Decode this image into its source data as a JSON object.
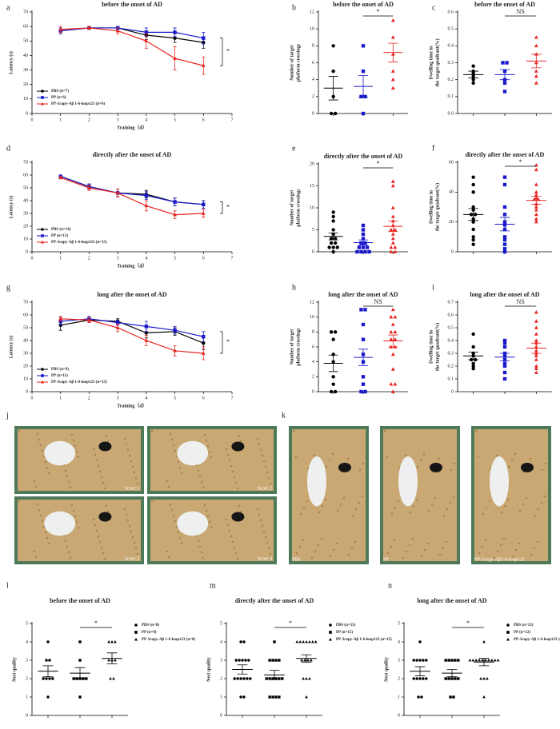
{
  "chart_data": [
    {
      "type": "line",
      "letter": "a",
      "title": "before the onset of AD",
      "xlabel": "Training（d）",
      "ylabel": "Latency (s)",
      "x": [
        1,
        2,
        3,
        4,
        5,
        6
      ],
      "xlim": [
        0,
        7
      ],
      "xticks": [
        0,
        1,
        2,
        3,
        4,
        5,
        6,
        7
      ],
      "ylim": [
        0,
        70
      ],
      "yticks": [
        0,
        10,
        20,
        30,
        40,
        50,
        60,
        70
      ],
      "legend": "lower left",
      "annotation": "*",
      "series": [
        {
          "name": "PBS  (n=7)",
          "color": "#000000",
          "marker": "circle",
          "values": [
            57,
            59,
            59,
            54,
            52,
            49
          ],
          "errors": [
            2,
            1,
            1,
            3,
            3,
            4
          ]
        },
        {
          "name": "PP  (n=6)",
          "color": "#1a1acc",
          "marker": "square",
          "values": [
            57,
            59,
            59,
            56,
            56,
            52
          ],
          "errors": [
            2,
            1,
            1,
            3,
            3,
            4
          ]
        },
        {
          "name": "PP-3copy-Aβ 1-6-loop123  (n=6)",
          "color": "#e8231f",
          "marker": "triangle",
          "values": [
            58,
            59,
            57,
            50,
            38,
            33
          ],
          "errors": [
            2,
            1,
            2,
            5,
            8,
            6
          ]
        }
      ]
    },
    {
      "type": "dot",
      "letter": "b",
      "title": "before the onset of AD",
      "ylabel": [
        "Number of target",
        "platform crossings"
      ],
      "ylim": [
        0,
        12
      ],
      "yticks": [
        0,
        2,
        4,
        6,
        8,
        10,
        12
      ],
      "annotation": "*",
      "series": [
        {
          "color": "#000000",
          "marker": "circle",
          "values": [
            8,
            5,
            2,
            0,
            0
          ],
          "mean": 3,
          "sem": 1.4
        },
        {
          "color": "#1a1acc",
          "marker": "square",
          "values": [
            8,
            5,
            2,
            2,
            0
          ],
          "mean": 3.2,
          "sem": 1.3
        },
        {
          "color": "#e8231f",
          "marker": "triangle",
          "values": [
            11,
            9,
            7,
            5,
            4,
            3
          ],
          "mean": 7.2,
          "sem": 1.1
        }
      ]
    },
    {
      "type": "dot",
      "letter": "c",
      "title": "before the onset of AD",
      "ylabel": [
        "Dwelling time in",
        "the target quadrant(%)"
      ],
      "ylim": [
        0,
        0.6
      ],
      "yticks": [
        {
          "value": 0,
          "label": "0.0"
        },
        0.1,
        0.2,
        0.3,
        0.4,
        0.5,
        0.6
      ],
      "annotation": "NS",
      "series": [
        {
          "color": "#000000",
          "marker": "circle",
          "values": [
            0.28,
            0.25,
            0.24,
            0.22,
            0.2,
            0.18
          ],
          "mean": 0.23,
          "sem": 0.02
        },
        {
          "color": "#1a1acc",
          "marker": "square",
          "values": [
            0.3,
            0.3,
            0.25,
            0.2,
            0.18,
            0.13
          ],
          "mean": 0.23,
          "sem": 0.03
        },
        {
          "color": "#e8231f",
          "marker": "triangle",
          "values": [
            0.45,
            0.4,
            0.35,
            0.3,
            0.25,
            0.22,
            0.18
          ],
          "mean": 0.31,
          "sem": 0.04
        }
      ]
    },
    {
      "type": "line",
      "letter": "d",
      "title": "directly after the onset of AD",
      "xlabel": "Training（d）",
      "ylabel": "Latency (s)",
      "x": [
        1,
        2,
        3,
        4,
        5,
        6
      ],
      "xlim": [
        0,
        7
      ],
      "xticks": [
        0,
        1,
        2,
        3,
        4,
        5,
        6,
        7
      ],
      "ylim": [
        0,
        70
      ],
      "yticks": [
        0,
        10,
        20,
        30,
        40,
        50,
        60,
        70
      ],
      "legend": "lower left",
      "annotation": "*",
      "series": [
        {
          "name": "PBS  (n=14)",
          "color": "#000000",
          "marker": "circle",
          "values": [
            59,
            51,
            46,
            45,
            39,
            37
          ],
          "errors": [
            1,
            2,
            3,
            3,
            3,
            3
          ]
        },
        {
          "name": "PP  (n=15)",
          "color": "#1a1acc",
          "marker": "square",
          "values": [
            59,
            51,
            46,
            44,
            39,
            37
          ],
          "errors": [
            1,
            2,
            3,
            3,
            3,
            3
          ]
        },
        {
          "name": "PP-3copy-Aβ 1-6-loop123  (n=15)",
          "color": "#e8231f",
          "marker": "triangle",
          "values": [
            58,
            50,
            46,
            36,
            29,
            30
          ],
          "errors": [
            1,
            2,
            3,
            4,
            3,
            3
          ]
        }
      ]
    },
    {
      "type": "dot",
      "letter": "e",
      "title": "directly after the onset of AD",
      "ylabel": [
        "Number of target",
        "platform crossings"
      ],
      "ylim": [
        0,
        20
      ],
      "yticks": [
        0,
        5,
        10,
        15,
        20
      ],
      "annotation": "*",
      "series": [
        {
          "color": "#000000",
          "marker": "circle",
          "values": [
            9,
            8,
            7,
            5,
            4,
            3,
            3,
            2,
            2,
            1,
            1,
            1,
            0
          ],
          "mean": 3.5,
          "sem": 0.8
        },
        {
          "color": "#1a1acc",
          "marker": "square",
          "values": [
            6,
            5,
            4,
            3,
            2,
            2,
            1,
            1,
            1,
            0,
            0,
            0,
            0
          ],
          "mean": 2.1,
          "sem": 0.6
        },
        {
          "color": "#e8231f",
          "marker": "triangle",
          "values": [
            16,
            15,
            10,
            8,
            7,
            6,
            5,
            5,
            4,
            3,
            2,
            1,
            1,
            0,
            0
          ],
          "mean": 5.8,
          "sem": 1.2
        }
      ]
    },
    {
      "type": "dot",
      "letter": "f",
      "title": "directly after the onset of AD",
      "ylabel": [
        "Dwelling time in",
        "the target quadrant(%)"
      ],
      "ylim": [
        0,
        60
      ],
      "yticks": [
        0,
        20,
        40,
        60
      ],
      "annotation": "*",
      "series": [
        {
          "color": "#000000",
          "marker": "circle",
          "values": [
            50,
            45,
            40,
            30,
            28,
            25,
            25,
            22,
            20,
            15,
            10,
            8,
            5
          ],
          "mean": 25,
          "sem": 4
        },
        {
          "color": "#1a1acc",
          "marker": "square",
          "values": [
            50,
            45,
            30,
            25,
            20,
            18,
            15,
            10,
            8,
            5,
            2,
            0
          ],
          "mean": 18.5,
          "sem": 4.5
        },
        {
          "color": "#e8231f",
          "marker": "triangle",
          "values": [
            58,
            55,
            45,
            40,
            38,
            36,
            35,
            35,
            32,
            30,
            28,
            25,
            22,
            20
          ],
          "mean": 34.5,
          "sem": 2.6
        }
      ]
    },
    {
      "type": "line",
      "letter": "g",
      "title": "long after the onset of AD",
      "xlabel": "Training（d）",
      "ylabel": "Latency (s)",
      "x": [
        1,
        2,
        3,
        4,
        5,
        6
      ],
      "xlim": [
        0,
        7
      ],
      "xticks": [
        0,
        1,
        2,
        3,
        4,
        5,
        6,
        7
      ],
      "ylim": [
        0,
        70
      ],
      "yticks": [
        0,
        10,
        20,
        30,
        40,
        50,
        60,
        70
      ],
      "legend": "lower left",
      "annotation": "*",
      "series": [
        {
          "name": "PBS  (n=9)",
          "color": "#000000",
          "marker": "circle",
          "values": [
            52,
            56,
            55,
            46,
            47,
            38
          ],
          "errors": [
            4,
            2,
            2,
            4,
            3,
            5
          ]
        },
        {
          "name": "PP  (n=11)",
          "color": "#1a1acc",
          "marker": "square",
          "values": [
            55,
            57,
            54,
            51,
            48,
            43
          ],
          "errors": [
            3,
            2,
            2,
            4,
            3,
            4
          ]
        },
        {
          "name": "PP-3copy-Aβ 1-6-loop123  (n=15)",
          "color": "#e8231f",
          "marker": "triangle",
          "values": [
            57,
            56,
            50,
            40,
            32,
            30
          ],
          "errors": [
            2,
            2,
            3,
            4,
            4,
            5
          ]
        }
      ]
    },
    {
      "type": "dot",
      "letter": "h",
      "title": "long after the onset of AD",
      "ylabel": [
        "Number of target",
        "platform crossings"
      ],
      "ylim": [
        0,
        12
      ],
      "yticks": [
        0,
        2,
        4,
        6,
        8,
        10,
        12
      ],
      "annotation": "NS",
      "series": [
        {
          "color": "#000000",
          "marker": "circle",
          "values": [
            8,
            8,
            7,
            5,
            4,
            2,
            1,
            0,
            0
          ],
          "mean": 3.8,
          "sem": 1.1
        },
        {
          "color": "#1a1acc",
          "marker": "square",
          "values": [
            11,
            11,
            9,
            7,
            5,
            4,
            2,
            1,
            0,
            0
          ],
          "mean": 4.6,
          "sem": 1.1
        },
        {
          "color": "#e8231f",
          "marker": "triangle",
          "values": [
            11,
            10,
            10,
            9,
            8,
            8,
            7,
            7,
            6,
            6,
            5,
            3,
            1,
            1,
            0
          ],
          "mean": 6.8,
          "sem": 0.8
        }
      ]
    },
    {
      "type": "dot",
      "letter": "i",
      "title": "long after the onset of AD",
      "ylabel": [
        "Dwelling time in",
        "the target quadrant(%)"
      ],
      "ylim": [
        0,
        0.7
      ],
      "yticks": [
        0,
        0.1,
        0.2,
        0.3,
        0.4,
        0.5,
        0.6,
        0.7
      ],
      "annotation": "NS",
      "series": [
        {
          "color": "#000000",
          "marker": "circle",
          "values": [
            0.45,
            0.35,
            0.3,
            0.28,
            0.25,
            0.25,
            0.22,
            0.2,
            0.18
          ],
          "mean": 0.28,
          "sem": 0.03
        },
        {
          "color": "#1a1acc",
          "marker": "square",
          "values": [
            0.4,
            0.38,
            0.35,
            0.3,
            0.28,
            0.25,
            0.22,
            0.2,
            0.15,
            0.1
          ],
          "mean": 0.27,
          "sem": 0.03
        },
        {
          "color": "#e8231f",
          "marker": "triangle",
          "values": [
            0.62,
            0.55,
            0.5,
            0.45,
            0.4,
            0.38,
            0.35,
            0.32,
            0.3,
            0.28,
            0.25,
            0.2,
            0.18,
            0.15
          ],
          "mean": 0.34,
          "sem": 0.04
        }
      ]
    },
    {
      "type": "dot",
      "letter": "l",
      "title": "before the onset of AD",
      "ylabel": "Nest quality",
      "ylim": [
        0,
        5
      ],
      "yticks": [
        0,
        1,
        2,
        3,
        4,
        5
      ],
      "annotation": "*",
      "legend": "right",
      "series": [
        {
          "name": "PBS  (n=8)",
          "color": "#000000",
          "marker": "circle",
          "values": [
            4,
            3,
            3,
            2,
            2,
            2,
            2,
            1
          ],
          "mean": 2.4,
          "sem": 0.3
        },
        {
          "name": "PP  (n=8)",
          "color": "#000000",
          "marker": "square",
          "values": [
            4,
            3,
            2,
            2,
            2,
            2,
            2,
            1
          ],
          "mean": 2.3,
          "sem": 0.3
        },
        {
          "name": "PP-3copy-Aβ 1-6-loop123  (n=8)",
          "color": "#000000",
          "marker": "triangle",
          "values": [
            4,
            4,
            4,
            3,
            3,
            3,
            2,
            2
          ],
          "mean": 3.1,
          "sem": 0.3
        }
      ]
    },
    {
      "type": "dot",
      "letter": "m",
      "title": "directly after the onset of AD",
      "ylabel": "Nest quality",
      "ylim": [
        0,
        5
      ],
      "yticks": [
        0,
        1,
        2,
        3,
        4,
        5
      ],
      "annotation": "*",
      "legend": "right",
      "series": [
        {
          "name": "PBS  (n=15)",
          "color": "#000000",
          "marker": "circle",
          "values": [
            4,
            4,
            3,
            3,
            3,
            3,
            3,
            2,
            2,
            2,
            2,
            2,
            2,
            1,
            1
          ],
          "mean": 2.5,
          "sem": 0.25
        },
        {
          "name": "PP  (n=15)",
          "color": "#000000",
          "marker": "square",
          "values": [
            4,
            3,
            3,
            3,
            3,
            2,
            2,
            2,
            2,
            2,
            2,
            1,
            1,
            1,
            1
          ],
          "mean": 2.2,
          "sem": 0.25
        },
        {
          "name": "PP-3copy-Aβ 1-6-loop123  (n=15)",
          "color": "#000000",
          "marker": "triangle",
          "values": [
            4,
            4,
            4,
            4,
            4,
            4,
            4,
            3,
            3,
            3,
            3,
            2,
            2,
            2,
            1
          ],
          "mean": 3.1,
          "sem": 0.2
        }
      ]
    },
    {
      "type": "dot",
      "letter": "n",
      "title": "long after the onset of AD",
      "ylabel": "Nest quality",
      "ylim": [
        0,
        5
      ],
      "yticks": [
        0,
        1,
        2,
        3,
        4,
        5
      ],
      "annotation": "*",
      "legend": "right",
      "series": [
        {
          "name": "PBS  (n=13)",
          "color": "#000000",
          "marker": "circle",
          "values": [
            4,
            3,
            3,
            3,
            3,
            3,
            2,
            2,
            2,
            2,
            2,
            1,
            1
          ],
          "mean": 2.4,
          "sem": 0.25
        },
        {
          "name": "PP  (n=12)",
          "color": "#000000",
          "marker": "square",
          "values": [
            3,
            3,
            3,
            3,
            3,
            2,
            2,
            2,
            2,
            2,
            1,
            1
          ],
          "mean": 2.3,
          "sem": 0.2
        },
        {
          "name": "PP-3copy-Aβ 1-6-loop123  (n=15)",
          "color": "#000000",
          "marker": "triangle",
          "values": [
            4,
            3,
            3,
            3,
            3,
            3,
            3,
            3,
            3,
            3,
            3,
            2,
            2,
            2,
            1
          ],
          "mean": 2.9,
          "sem": 0.2
        }
      ]
    }
  ],
  "photos": [
    {
      "letter": "j",
      "labels": [
        "Score 1",
        "Score 2",
        "Score 3",
        "Score 4"
      ]
    },
    {
      "letter": "k",
      "labels": [
        "PBS",
        "PP",
        "PP-3copy-Aβ1-6-loop123"
      ]
    }
  ]
}
